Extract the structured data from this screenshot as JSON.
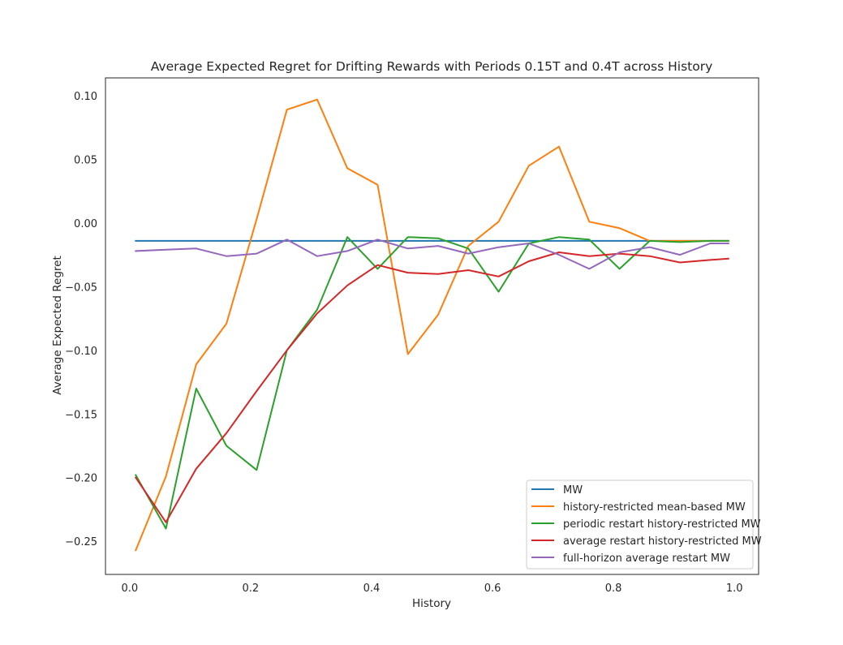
{
  "chart_data": {
    "type": "line",
    "title": "Average Expected Regret for Drifting Rewards with Periods 0.15T and 0.4T across History",
    "xlabel": "History",
    "ylabel": "Average Expected Regret",
    "xlim": [
      -0.04,
      1.04
    ],
    "ylim": [
      -0.276,
      0.114
    ],
    "xticks": [
      0.0,
      0.2,
      0.4,
      0.6,
      0.8,
      1.0
    ],
    "xtick_labels": [
      "0.0",
      "0.2",
      "0.4",
      "0.6",
      "0.8",
      "1.0"
    ],
    "yticks": [
      0.1,
      0.05,
      0.0,
      -0.05,
      -0.1,
      -0.15,
      -0.2,
      -0.25
    ],
    "ytick_labels": [
      "0.10",
      "0.05",
      "0.00",
      "−0.05",
      "−0.10",
      "−0.15",
      "−0.20",
      "−0.25"
    ],
    "grid": false,
    "legend_position": "bottom-right",
    "x": [
      0.01,
      0.06,
      0.11,
      0.16,
      0.21,
      0.26,
      0.31,
      0.36,
      0.41,
      0.46,
      0.51,
      0.56,
      0.61,
      0.66,
      0.71,
      0.76,
      0.81,
      0.86,
      0.91,
      0.96,
      0.99
    ],
    "series": [
      {
        "name": "MW",
        "color": "#1f77b4",
        "values": [
          -0.014,
          -0.014,
          -0.014,
          -0.014,
          -0.014,
          -0.014,
          -0.014,
          -0.014,
          -0.014,
          -0.014,
          -0.014,
          -0.014,
          -0.014,
          -0.014,
          -0.014,
          -0.014,
          -0.014,
          -0.014,
          -0.014,
          -0.014,
          -0.014
        ]
      },
      {
        "name": "history-restricted mean-based MW",
        "color": "#ff7f0e",
        "values": [
          -0.257,
          -0.199,
          -0.111,
          -0.079,
          0.003,
          0.089,
          0.097,
          0.043,
          0.03,
          -0.103,
          -0.072,
          -0.018,
          0.001,
          0.045,
          0.06,
          0.001,
          -0.004,
          -0.014,
          -0.014,
          -0.014,
          -0.014
        ]
      },
      {
        "name": "periodic restart history-restricted MW",
        "color": "#2ca02c",
        "values": [
          -0.198,
          -0.24,
          -0.13,
          -0.175,
          -0.194,
          -0.1,
          -0.068,
          -0.011,
          -0.036,
          -0.011,
          -0.012,
          -0.02,
          -0.054,
          -0.016,
          -0.011,
          -0.013,
          -0.036,
          -0.014,
          -0.015,
          -0.014,
          -0.014
        ]
      },
      {
        "name": "average restart history-restricted MW",
        "color": "#d62728",
        "values": [
          -0.2,
          -0.235,
          -0.193,
          -0.165,
          -0.132,
          -0.1,
          -0.071,
          -0.049,
          -0.033,
          -0.039,
          -0.04,
          -0.037,
          -0.042,
          -0.03,
          -0.023,
          -0.026,
          -0.024,
          -0.026,
          -0.031,
          -0.029,
          -0.028
        ]
      },
      {
        "name": "full-horizon average restart MW",
        "color": "#9467bd",
        "values": [
          -0.022,
          -0.021,
          -0.02,
          -0.026,
          -0.024,
          -0.013,
          -0.026,
          -0.022,
          -0.013,
          -0.02,
          -0.018,
          -0.024,
          -0.019,
          -0.016,
          -0.025,
          -0.036,
          -0.023,
          -0.019,
          -0.025,
          -0.016,
          -0.016
        ]
      }
    ]
  }
}
